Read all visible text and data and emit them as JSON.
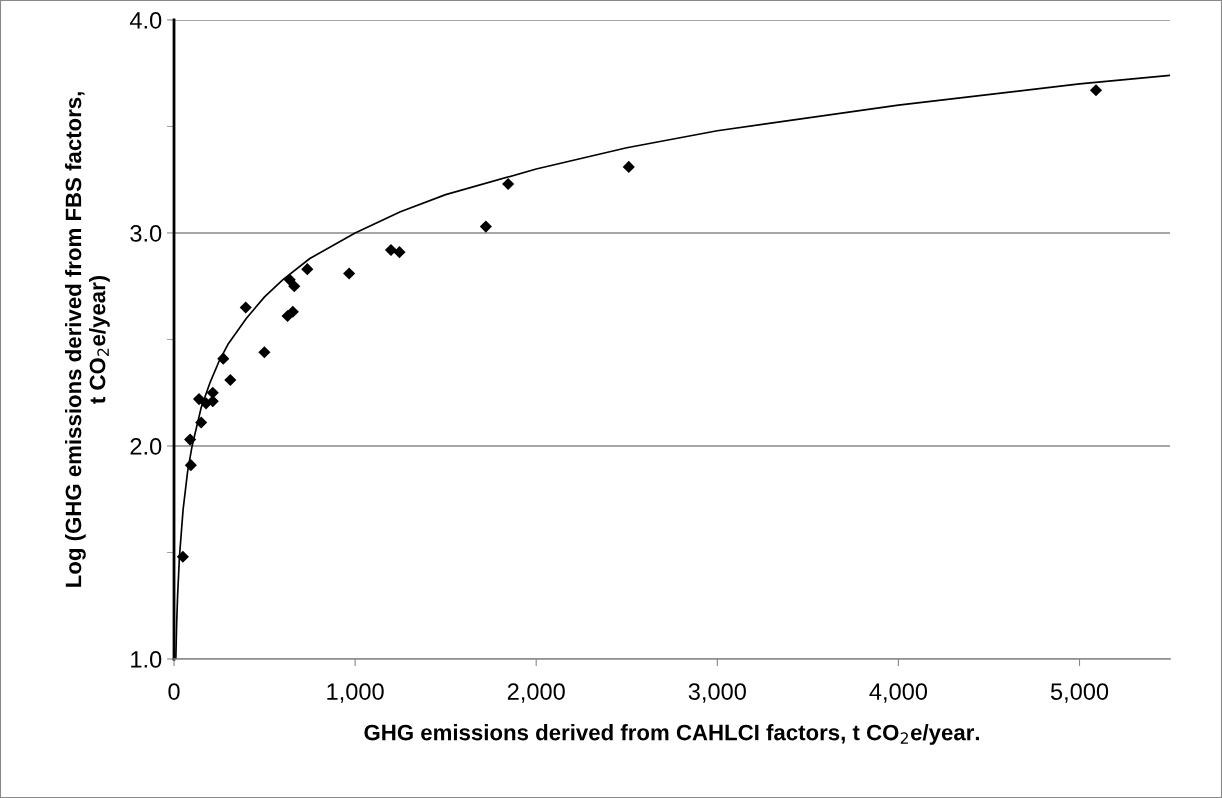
{
  "chart_data": {
    "type": "scatter",
    "xlabel": "GHG emissions derived from CAHLCI factors, t CO$_{2}$e/year.",
    "ylabel": "Log (GHG emissions derived from FBS factors,\nt CO$_{2}$e/year)",
    "xlim": [
      0,
      5500
    ],
    "xticks": [
      0,
      {
        "value": 1000,
        "label": "1,000"
      },
      {
        "value": 2000,
        "label": "2,000"
      },
      {
        "value": 3000,
        "label": "3,000"
      },
      {
        "value": 4000,
        "label": "4,000"
      },
      {
        "value": 5000,
        "label": "5,000"
      }
    ],
    "ylim": [
      1,
      4
    ],
    "yticks": [
      {
        "value": 1,
        "label": "1.0"
      },
      {
        "value": 1.5,
        "label": null
      },
      {
        "value": 2,
        "label": "2.0"
      },
      {
        "value": 2.5,
        "label": null
      },
      {
        "value": 3,
        "label": "3.0"
      },
      {
        "value": 3.5,
        "label": null
      },
      {
        "value": 4,
        "label": "4.0"
      }
    ],
    "grid": "y",
    "marker": "diamond",
    "series": [
      {
        "color": "#000000",
        "x": [
          49,
          93,
          89,
          150,
          138,
          177,
          214,
          214,
          272,
          311,
          396,
          499,
          627,
          656,
          639,
          664,
          736,
          967,
          1198,
          1245,
          1722,
          1845,
          2511,
          5091
        ],
        "values": [
          1.48,
          1.91,
          2.03,
          2.11,
          2.22,
          2.2,
          2.21,
          2.25,
          2.41,
          2.31,
          2.65,
          2.44,
          2.61,
          2.63,
          2.78,
          2.75,
          2.83,
          2.81,
          2.92,
          2.91,
          3.03,
          3.23,
          3.31,
          3.67
        ]
      },
      {
        "type": "line",
        "color": "#000000",
        "marker": "none",
        "line_style": "solid",
        "x": [
          10,
          15,
          20,
          30,
          50,
          75,
          100,
          150,
          200,
          250,
          300,
          400,
          500,
          600,
          750,
          1000,
          1250,
          1500,
          2000,
          2500,
          3000,
          4000,
          5000,
          5500
        ],
        "values": [
          1.0,
          1.18,
          1.3,
          1.48,
          1.7,
          1.88,
          2.0,
          2.18,
          2.3,
          2.4,
          2.48,
          2.6,
          2.7,
          2.78,
          2.88,
          3.0,
          3.1,
          3.18,
          3.3,
          3.4,
          3.48,
          3.6,
          3.7,
          3.74
        ]
      }
    ]
  }
}
